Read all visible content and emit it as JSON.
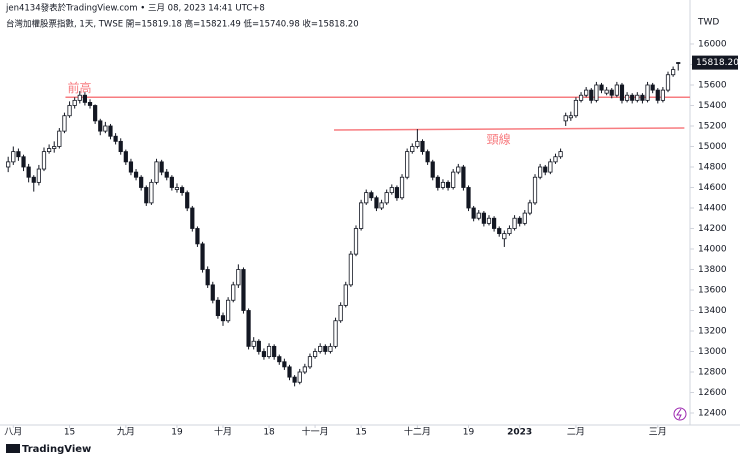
{
  "header": {
    "line1": "jen4134發表於TradingView.com • 三月 08, 2023 14:41 UTC+8",
    "line2": "台灣加權股票指數, 1天, TWSE  開=15819.18  高=15821.49  低=15740.98  收=15818.20"
  },
  "chart_data": {
    "type": "candlestick",
    "currency": "TWD",
    "last_label": "15818.20",
    "brand": "TradingView",
    "up_color": "#ffffff",
    "down_color": "#131722",
    "edge_color": "#131722",
    "xlim": [
      -1.6,
      133.3
    ],
    "ylim": [
      12283,
      16351
    ],
    "xticks": [
      {
        "value": 1,
        "label": "八月"
      },
      {
        "value": 12,
        "label": "15"
      },
      {
        "value": 23,
        "label": "九月"
      },
      {
        "value": 33,
        "label": "19"
      },
      {
        "value": 42,
        "label": "十月"
      },
      {
        "value": 51,
        "label": "18"
      },
      {
        "value": 60,
        "label": "十一月"
      },
      {
        "value": 69,
        "label": "15"
      },
      {
        "value": 80,
        "label": "十二月"
      },
      {
        "value": 90,
        "label": "19"
      },
      {
        "value": 100,
        "label": "2023"
      },
      {
        "value": 111,
        "label": "二月"
      },
      {
        "value": 127,
        "label": "三月"
      }
    ],
    "yticks": [
      12400,
      12600,
      12800,
      13000,
      13200,
      13400,
      13600,
      13800,
      14000,
      14200,
      14400,
      14600,
      14800,
      15000,
      15200,
      15400,
      15600,
      15800,
      16000
    ],
    "annotations": [
      {
        "text": "前高",
        "x": [
          11.2,
          133.3
        ],
        "y": [
          15480,
          15480
        ],
        "color": "#f77c80"
      },
      {
        "text": "頸線",
        "x": [
          63.7,
          132.2
        ],
        "y": [
          15161,
          15180
        ],
        "color": "#f77c80"
      }
    ],
    "ohlc": [
      [
        14800,
        14900,
        14750,
        14850
      ],
      [
        14850,
        15000,
        14820,
        14950
      ],
      [
        14950,
        14980,
        14860,
        14900
      ],
      [
        14900,
        14920,
        14760,
        14800
      ],
      [
        14800,
        14830,
        14650,
        14700
      ],
      [
        14700,
        14720,
        14560,
        14650
      ],
      [
        14650,
        14820,
        14620,
        14780
      ],
      [
        14780,
        14990,
        14760,
        14950
      ],
      [
        14950,
        15020,
        14930,
        14980
      ],
      [
        14980,
        15050,
        14940,
        15000
      ],
      [
        15000,
        15180,
        14980,
        15150
      ],
      [
        15150,
        15330,
        15130,
        15300
      ],
      [
        15300,
        15440,
        15280,
        15400
      ],
      [
        15400,
        15480,
        15370,
        15450
      ],
      [
        15450,
        15540,
        15420,
        15500
      ],
      [
        15500,
        15530,
        15400,
        15430
      ],
      [
        15430,
        15460,
        15370,
        15400
      ],
      [
        15400,
        15410,
        15220,
        15250
      ],
      [
        15250,
        15270,
        15110,
        15150
      ],
      [
        15150,
        15240,
        15130,
        15200
      ],
      [
        15200,
        15220,
        15070,
        15100
      ],
      [
        15100,
        15130,
        15020,
        15050
      ],
      [
        15050,
        15080,
        14920,
        14950
      ],
      [
        14950,
        14970,
        14820,
        14850
      ],
      [
        14850,
        14880,
        14720,
        14750
      ],
      [
        14750,
        14780,
        14670,
        14700
      ],
      [
        14700,
        14720,
        14570,
        14600
      ],
      [
        14600,
        14620,
        14420,
        14450
      ],
      [
        14450,
        14680,
        14430,
        14650
      ],
      [
        14650,
        14880,
        14630,
        14850
      ],
      [
        14850,
        14870,
        14720,
        14750
      ],
      [
        14750,
        14780,
        14670,
        14700
      ],
      [
        14700,
        14720,
        14570,
        14600
      ],
      [
        14580,
        14640,
        14550,
        14600
      ],
      [
        14600,
        14620,
        14520,
        14550
      ],
      [
        14550,
        14570,
        14370,
        14400
      ],
      [
        14400,
        14420,
        14170,
        14200
      ],
      [
        14200,
        14220,
        14020,
        14050
      ],
      [
        14050,
        14070,
        13770,
        13800
      ],
      [
        13800,
        13830,
        13620,
        13650
      ],
      [
        13650,
        13680,
        13470,
        13500
      ],
      [
        13500,
        13530,
        13320,
        13350
      ],
      [
        13350,
        13380,
        13250,
        13300
      ],
      [
        13300,
        13530,
        13280,
        13500
      ],
      [
        13500,
        13680,
        13480,
        13650
      ],
      [
        13650,
        13850,
        13620,
        13800
      ],
      [
        13800,
        13820,
        13370,
        13400
      ],
      [
        13400,
        13420,
        13020,
        13050
      ],
      [
        13050,
        13140,
        13020,
        13100
      ],
      [
        13100,
        13120,
        12970,
        13000
      ],
      [
        13000,
        13030,
        12920,
        12950
      ],
      [
        12950,
        13080,
        12930,
        13050
      ],
      [
        13050,
        13070,
        12920,
        12950
      ],
      [
        12950,
        12970,
        12870,
        12900
      ],
      [
        12900,
        12930,
        12820,
        12850
      ],
      [
        12850,
        12870,
        12720,
        12750
      ],
      [
        12750,
        12770,
        12660,
        12700
      ],
      [
        12700,
        12830,
        12680,
        12800
      ],
      [
        12800,
        12880,
        12780,
        12850
      ],
      [
        12850,
        12980,
        12830,
        12950
      ],
      [
        12950,
        13030,
        12930,
        13000
      ],
      [
        13000,
        13080,
        12980,
        13050
      ],
      [
        13050,
        13070,
        12970,
        13000
      ],
      [
        13000,
        13080,
        12980,
        13050
      ],
      [
        13050,
        13330,
        13030,
        13300
      ],
      [
        13300,
        13480,
        13280,
        13450
      ],
      [
        13450,
        13680,
        13430,
        13650
      ],
      [
        13650,
        13980,
        13630,
        13950
      ],
      [
        13950,
        14230,
        13930,
        14200
      ],
      [
        14200,
        14480,
        14180,
        14450
      ],
      [
        14450,
        14580,
        14430,
        14550
      ],
      [
        14550,
        14570,
        14470,
        14500
      ],
      [
        14500,
        14520,
        14370,
        14400
      ],
      [
        14400,
        14480,
        14380,
        14450
      ],
      [
        14450,
        14580,
        14430,
        14550
      ],
      [
        14550,
        14630,
        14530,
        14600
      ],
      [
        14600,
        14620,
        14470,
        14500
      ],
      [
        14500,
        14730,
        14480,
        14700
      ],
      [
        14700,
        14980,
        14680,
        14950
      ],
      [
        14950,
        15030,
        14930,
        15000
      ],
      [
        15000,
        15170,
        14980,
        15050
      ],
      [
        15050,
        15070,
        14920,
        14950
      ],
      [
        14950,
        14970,
        14820,
        14850
      ],
      [
        14850,
        14870,
        14670,
        14700
      ],
      [
        14700,
        14720,
        14570,
        14600
      ],
      [
        14600,
        14680,
        14580,
        14650
      ],
      [
        14650,
        14670,
        14570,
        14600
      ],
      [
        14600,
        14780,
        14580,
        14750
      ],
      [
        14750,
        14830,
        14730,
        14800
      ],
      [
        14800,
        14820,
        14570,
        14600
      ],
      [
        14600,
        14620,
        14370,
        14400
      ],
      [
        14400,
        14420,
        14270,
        14300
      ],
      [
        14300,
        14380,
        14280,
        14350
      ],
      [
        14350,
        14370,
        14220,
        14250
      ],
      [
        14250,
        14330,
        14230,
        14300
      ],
      [
        14300,
        14320,
        14170,
        14200
      ],
      [
        14200,
        14220,
        14120,
        14150
      ],
      [
        14100,
        14180,
        14020,
        14150
      ],
      [
        14150,
        14230,
        14130,
        14200
      ],
      [
        14200,
        14330,
        14180,
        14300
      ],
      [
        14300,
        14320,
        14220,
        14250
      ],
      [
        14250,
        14380,
        14230,
        14350
      ],
      [
        14350,
        14480,
        14330,
        14450
      ],
      [
        14450,
        14730,
        14430,
        14700
      ],
      [
        14700,
        14830,
        14680,
        14800
      ],
      [
        14800,
        14820,
        14720,
        14750
      ],
      [
        14750,
        14880,
        14730,
        14850
      ],
      [
        14850,
        14930,
        14830,
        14900
      ],
      [
        14900,
        14980,
        14880,
        14950
      ],
      [
        15250,
        15330,
        15200,
        15300
      ],
      [
        15280,
        15340,
        15250,
        15300
      ],
      [
        15300,
        15480,
        15280,
        15450
      ],
      [
        15450,
        15530,
        15430,
        15500
      ],
      [
        15500,
        15580,
        15480,
        15550
      ],
      [
        15550,
        15570,
        15420,
        15450
      ],
      [
        15450,
        15630,
        15430,
        15600
      ],
      [
        15600,
        15620,
        15520,
        15550
      ],
      [
        15520,
        15580,
        15500,
        15550
      ],
      [
        15550,
        15570,
        15470,
        15500
      ],
      [
        15500,
        15630,
        15480,
        15600
      ],
      [
        15600,
        15620,
        15420,
        15450
      ],
      [
        15450,
        15530,
        15430,
        15500
      ],
      [
        15500,
        15520,
        15420,
        15450
      ],
      [
        15450,
        15530,
        15430,
        15500
      ],
      [
        15500,
        15520,
        15420,
        15450
      ],
      [
        15450,
        15630,
        15430,
        15600
      ],
      [
        15600,
        15620,
        15520,
        15550
      ],
      [
        15550,
        15570,
        15420,
        15450
      ],
      [
        15450,
        15580,
        15430,
        15550
      ],
      [
        15550,
        15730,
        15530,
        15700
      ],
      [
        15700,
        15780,
        15680,
        15750
      ],
      [
        15819.18,
        15821.49,
        15740.98,
        15818.2
      ]
    ]
  }
}
